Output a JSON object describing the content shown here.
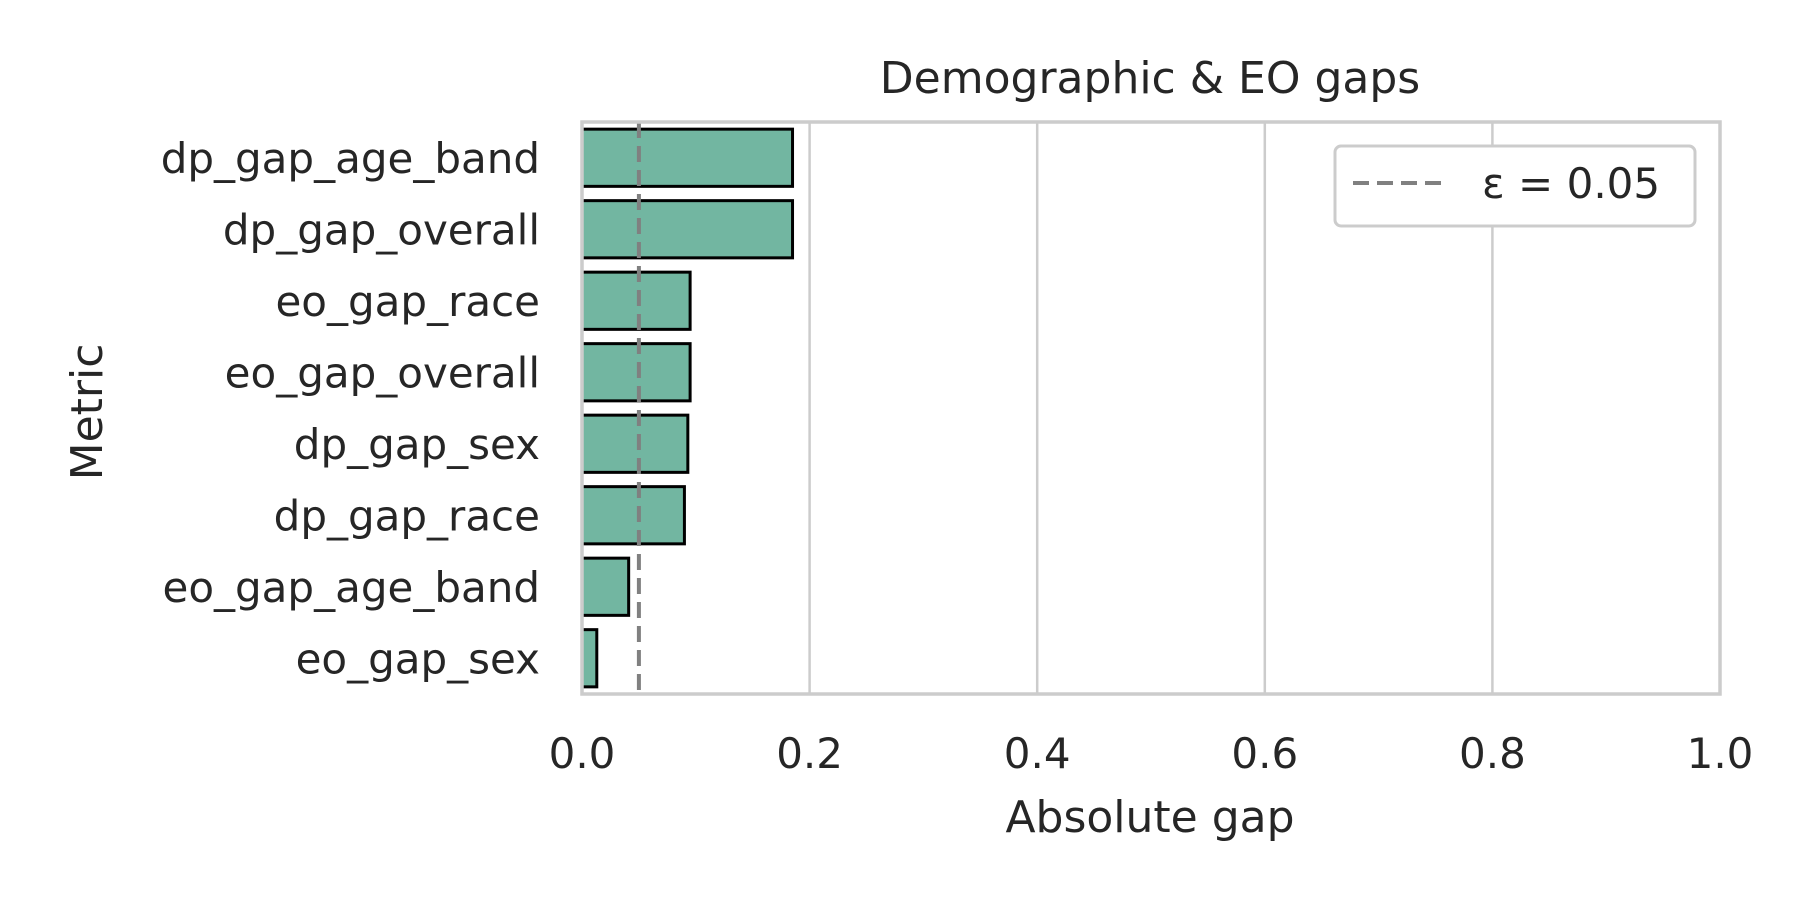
{
  "chart_data": {
    "type": "bar",
    "orientation": "horizontal",
    "title": "Demographic & EO gaps",
    "xlabel": "Absolute gap",
    "ylabel": "Metric",
    "categories": [
      "dp_gap_age_band",
      "dp_gap_overall",
      "eo_gap_race",
      "eo_gap_overall",
      "dp_gap_sex",
      "dp_gap_race",
      "eo_gap_age_band",
      "eo_gap_sex"
    ],
    "values": [
      0.185,
      0.185,
      0.095,
      0.095,
      0.093,
      0.09,
      0.041,
      0.013
    ],
    "xlim": [
      0,
      1.0
    ],
    "xticks": [
      "0.0",
      "0.2",
      "0.4",
      "0.6",
      "0.8",
      "1.0"
    ],
    "xtick_values": [
      0,
      0.2,
      0.4,
      0.6,
      0.8,
      1.0
    ],
    "grid": true,
    "bar_color": "#72b6a1",
    "bar_edge_color": "#000000",
    "threshold": {
      "value": 0.05,
      "label": "ε = 0.05",
      "color": "#808080",
      "style": "dashed"
    },
    "legend_placement": "top-right"
  }
}
